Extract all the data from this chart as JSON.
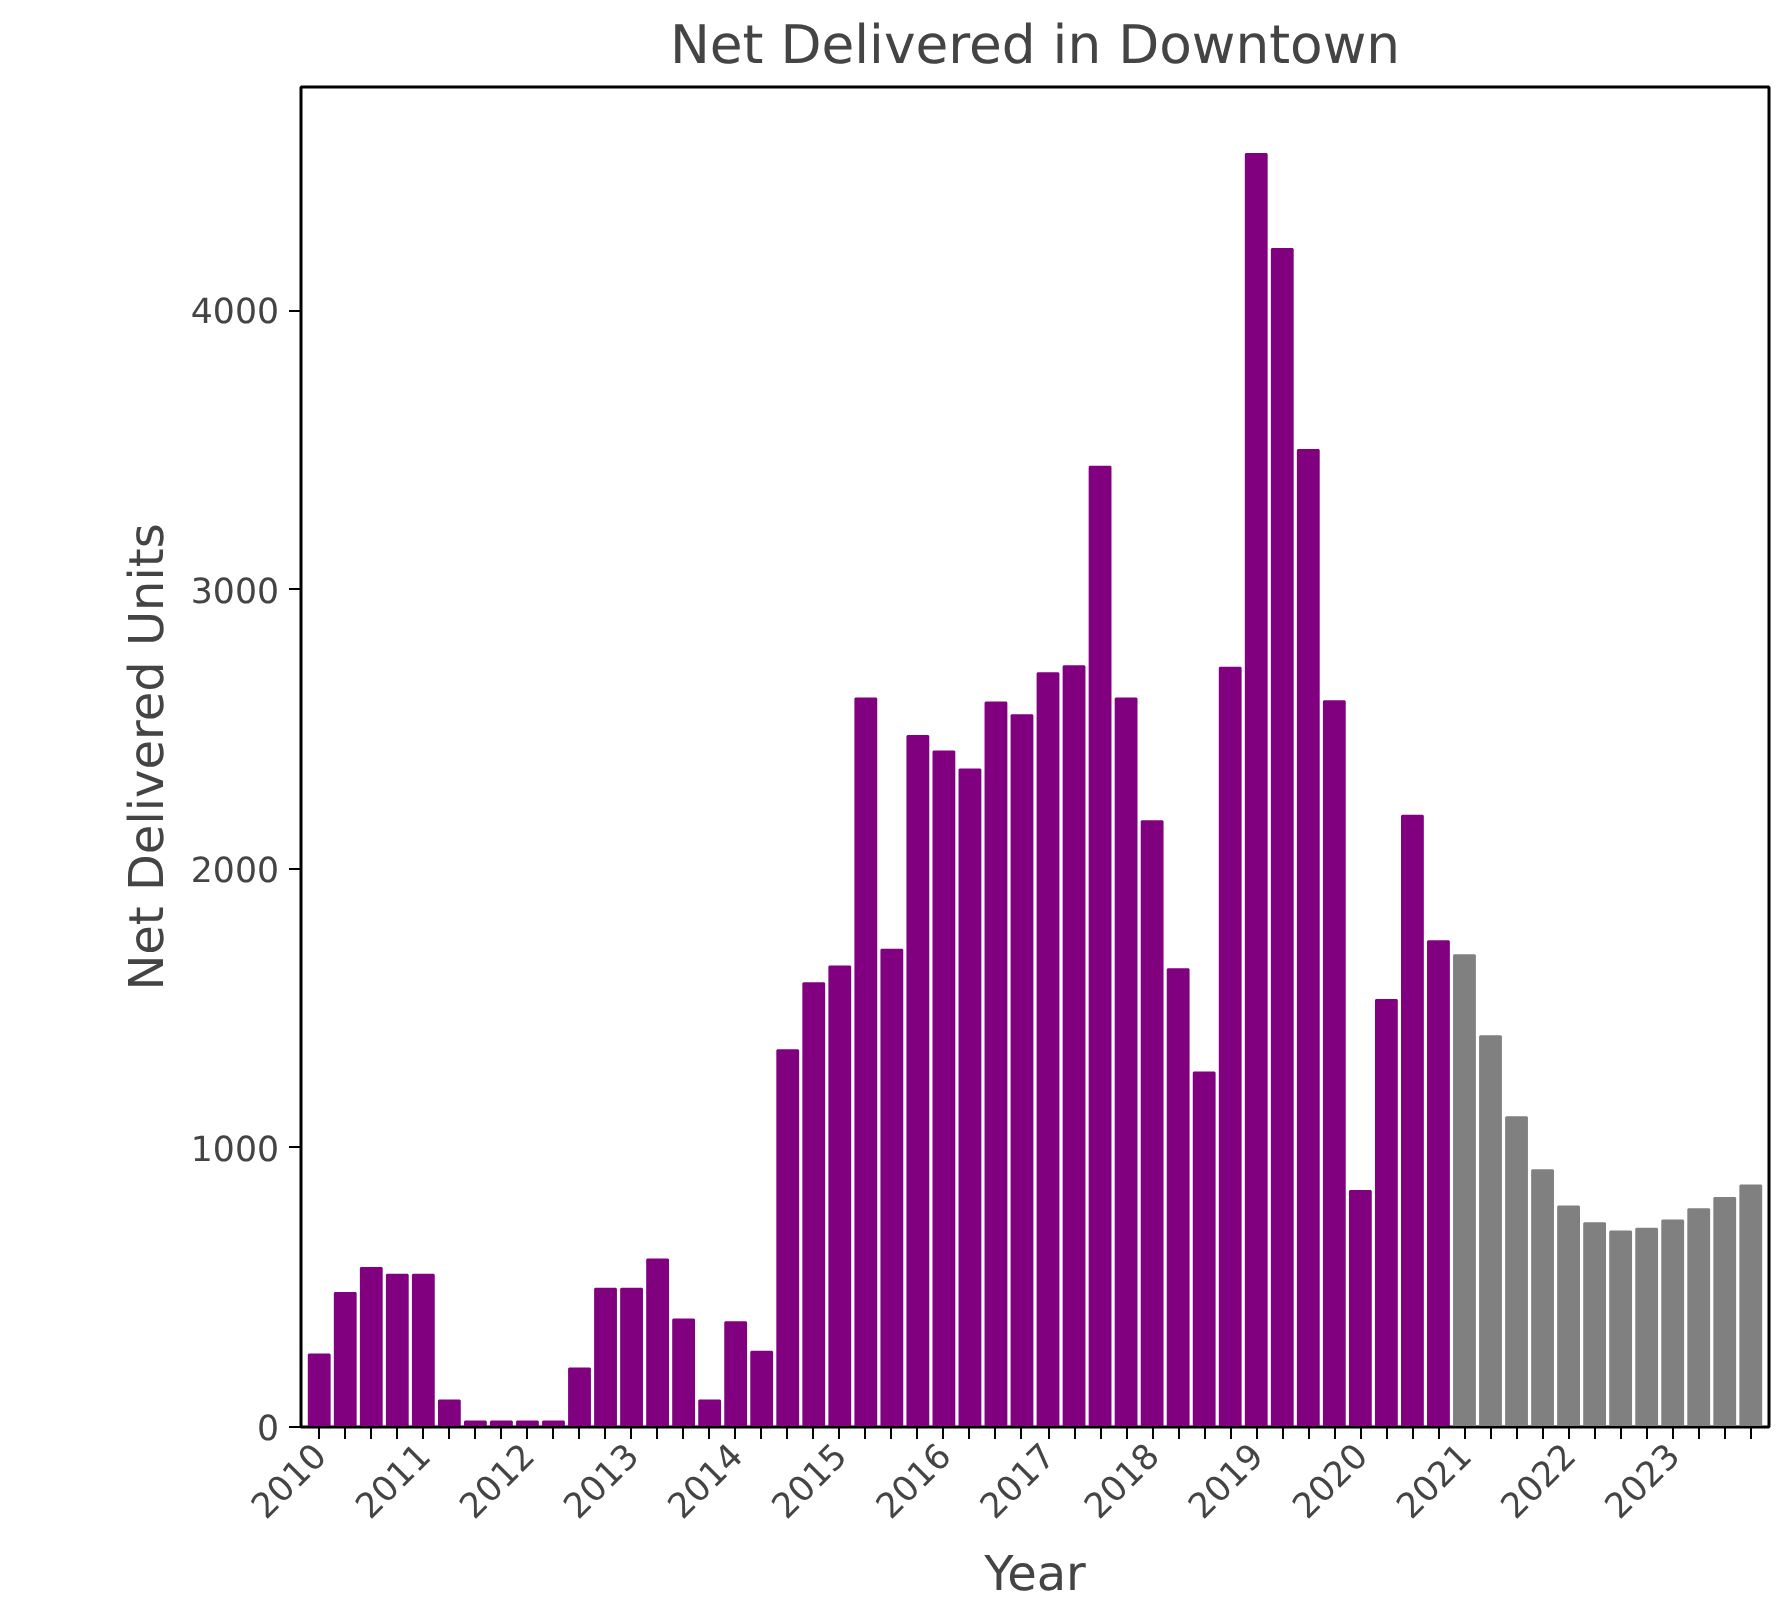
{
  "chart_data": {
    "type": "bar",
    "title": "Net Delivered in Downtown",
    "xlabel": "Year",
    "ylabel": "Net Delivered Units",
    "categories": [
      "2010",
      null,
      null,
      null,
      "2011",
      null,
      null,
      null,
      "2012",
      null,
      null,
      null,
      "2013",
      null,
      null,
      null,
      "2014",
      null,
      null,
      null,
      "2015",
      null,
      null,
      null,
      "2016",
      null,
      null,
      null,
      "2017",
      null,
      null,
      null,
      "2018",
      null,
      null,
      null,
      "2019",
      null,
      null,
      null,
      "2020",
      null,
      null,
      null,
      "2021",
      null,
      null,
      null,
      "2022",
      null,
      null,
      null,
      "2023",
      null,
      null,
      null
    ],
    "values": [
      260,
      480,
      570,
      545,
      545,
      95,
      20,
      20,
      20,
      20,
      210,
      495,
      495,
      600,
      385,
      95,
      375,
      270,
      1350,
      1590,
      1650,
      2610,
      1710,
      2475,
      2420,
      2355,
      2595,
      2550,
      2700,
      2725,
      3440,
      2610,
      2170,
      1640,
      1270,
      2720,
      4560,
      4220,
      3500,
      2600,
      845,
      1530,
      2190,
      1740,
      1690,
      1400,
      1110,
      920,
      790,
      730,
      700,
      710,
      740,
      780,
      820,
      865
    ],
    "colors": [
      "#800080",
      "#800080",
      "#800080",
      "#800080",
      "#800080",
      "#800080",
      "#800080",
      "#800080",
      "#800080",
      "#800080",
      "#800080",
      "#800080",
      "#800080",
      "#800080",
      "#800080",
      "#800080",
      "#800080",
      "#800080",
      "#800080",
      "#800080",
      "#800080",
      "#800080",
      "#800080",
      "#800080",
      "#800080",
      "#800080",
      "#800080",
      "#800080",
      "#800080",
      "#800080",
      "#800080",
      "#800080",
      "#800080",
      "#800080",
      "#800080",
      "#800080",
      "#800080",
      "#800080",
      "#800080",
      "#800080",
      "#800080",
      "#800080",
      "#800080",
      "#800080",
      "#808080",
      "#808080",
      "#808080",
      "#808080",
      "#808080",
      "#808080",
      "#808080",
      "#808080",
      "#808080",
      "#808080",
      "#808080",
      "#808080"
    ],
    "ylim": [
      0,
      4800
    ],
    "yticks": [
      0,
      1000,
      2000,
      3000,
      4000
    ],
    "grid": false
  }
}
